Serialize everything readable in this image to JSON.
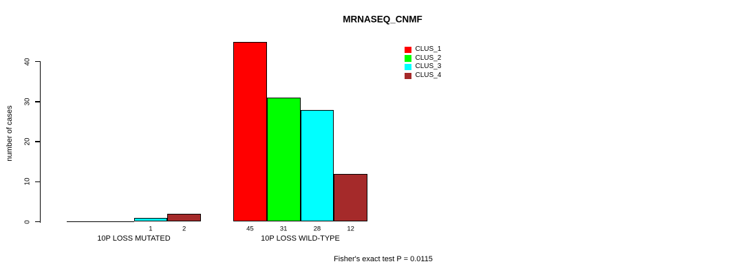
{
  "chart_data": {
    "type": "bar",
    "title": "MRNASEQ_CNMF",
    "ylabel": "number of cases",
    "xlabel": "",
    "categories": [
      "10P LOSS MUTATED",
      "10P LOSS WILD-TYPE"
    ],
    "series": [
      {
        "name": "CLUS_1",
        "color": "#FF0000",
        "values": [
          0,
          45
        ]
      },
      {
        "name": "CLUS_2",
        "color": "#00FF00",
        "values": [
          0,
          31
        ]
      },
      {
        "name": "CLUS_3",
        "color": "#00FFFF",
        "values": [
          1,
          28
        ]
      },
      {
        "name": "CLUS_4",
        "color": "#A52A2A",
        "values": [
          2,
          12
        ]
      }
    ],
    "yticks": [
      0,
      10,
      20,
      30,
      40
    ],
    "ylim": [
      0,
      45
    ],
    "grid": false,
    "legend_position": "top-right",
    "bar_borders": "#000000",
    "value_labels": "shown under each nonzero bar",
    "annotation": "Fisher's exact test P = 0.0115"
  }
}
